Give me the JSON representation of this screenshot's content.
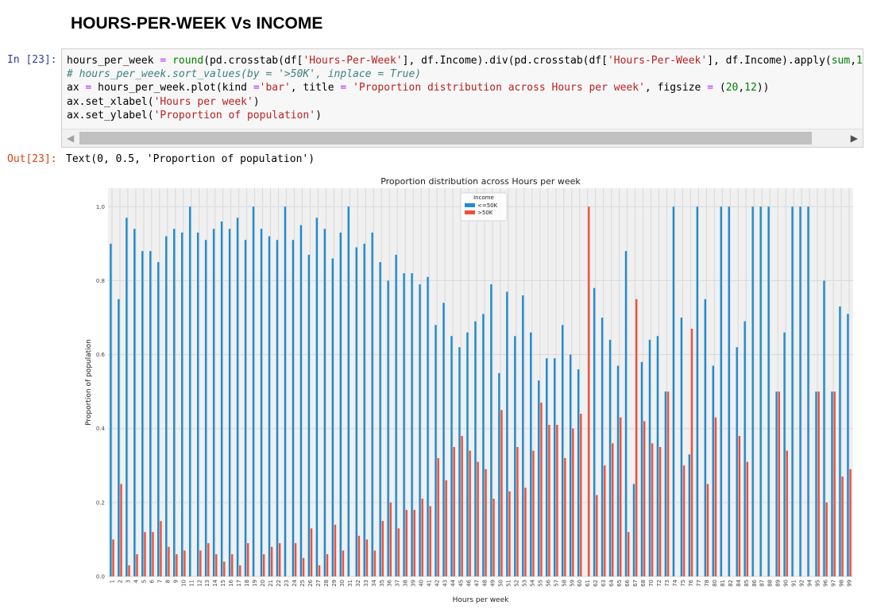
{
  "heading": "HOURS-PER-WEEK Vs INCOME",
  "cell_in": {
    "prompt": "In [23]:",
    "lines": [
      [
        {
          "t": "hours_per_week ",
          "c": ""
        },
        {
          "t": "=",
          "c": "op"
        },
        {
          "t": " ",
          "c": ""
        },
        {
          "t": "round",
          "c": "kw"
        },
        {
          "t": "(pd.crosstab(df[",
          "c": ""
        },
        {
          "t": "'Hours-Per-Week'",
          "c": "str"
        },
        {
          "t": "], df.Income).div(pd.crosstab(df[",
          "c": ""
        },
        {
          "t": "'Hours-Per-Week'",
          "c": "str"
        },
        {
          "t": "], df.Income).apply(",
          "c": ""
        },
        {
          "t": "sum",
          "c": "kw"
        },
        {
          "t": ",",
          "c": ""
        },
        {
          "t": "1",
          "c": "num"
        },
        {
          "t": "),",
          "c": ""
        }
      ],
      [
        {
          "t": "# hours_per_week.sort_values(by = '>50K', inplace = True)",
          "c": "cmt"
        }
      ],
      [
        {
          "t": "ax ",
          "c": ""
        },
        {
          "t": "=",
          "c": "op"
        },
        {
          "t": " hours_per_week.plot(kind ",
          "c": ""
        },
        {
          "t": "=",
          "c": "op"
        },
        {
          "t": "'bar'",
          "c": "str"
        },
        {
          "t": ", title ",
          "c": ""
        },
        {
          "t": "=",
          "c": "op"
        },
        {
          "t": " ",
          "c": ""
        },
        {
          "t": "'Proportion distribution across Hours per week'",
          "c": "str"
        },
        {
          "t": ", figsize ",
          "c": ""
        },
        {
          "t": "=",
          "c": "op"
        },
        {
          "t": " (",
          "c": ""
        },
        {
          "t": "20",
          "c": "num"
        },
        {
          "t": ",",
          "c": ""
        },
        {
          "t": "12",
          "c": "num"
        },
        {
          "t": "))",
          "c": ""
        }
      ],
      [
        {
          "t": "ax.set_xlabel(",
          "c": ""
        },
        {
          "t": "'Hours per week'",
          "c": "str"
        },
        {
          "t": ")",
          "c": ""
        }
      ],
      [
        {
          "t": "ax.set_ylabel(",
          "c": ""
        },
        {
          "t": "'Proportion of population'",
          "c": "str"
        },
        {
          "t": ")",
          "c": ""
        }
      ]
    ]
  },
  "cell_out": {
    "prompt": "Out[23]:",
    "text": "Text(0, 0.5, 'Proportion of population')"
  },
  "chart_data": {
    "type": "bar",
    "title": "Proportion distribution across Hours per week",
    "xlabel": "Hours per week",
    "ylabel": "Proportion of population",
    "ylim": [
      0,
      1.05
    ],
    "yticks": [
      "0.0",
      "0.2",
      "0.4",
      "0.6",
      "0.8",
      "1.0"
    ],
    "grid": true,
    "legend": {
      "title": "Income",
      "placement": "top-center"
    },
    "colors": {
      "<=50K": "#1f8ccf",
      ">50K": "#f0513a",
      "background": "#f0f0f0",
      "grid": "#d8d8d8"
    },
    "categories": [
      "1",
      "2",
      "3",
      "4",
      "5",
      "6",
      "7",
      "8",
      "9",
      "10",
      "11",
      "12",
      "13",
      "14",
      "15",
      "16",
      "17",
      "18",
      "19",
      "20",
      "21",
      "22",
      "23",
      "24",
      "25",
      "26",
      "27",
      "28",
      "29",
      "30",
      "31",
      "32",
      "33",
      "34",
      "35",
      "36",
      "37",
      "38",
      "39",
      "40",
      "41",
      "42",
      "43",
      "44",
      "45",
      "46",
      "47",
      "48",
      "49",
      "50",
      "51",
      "52",
      "53",
      "54",
      "55",
      "56",
      "57",
      "58",
      "59",
      "60",
      "61",
      "62",
      "63",
      "64",
      "65",
      "66",
      "67",
      "68",
      "70",
      "72",
      "73",
      "74",
      "75",
      "76",
      "77",
      "78",
      "80",
      "81",
      "82",
      "84",
      "85",
      "86",
      "87",
      "88",
      "89",
      "90",
      "91",
      "92",
      "94",
      "95",
      "96",
      "97",
      "98",
      "99"
    ],
    "series": [
      {
        "name": "<=50K",
        "values": [
          0.9,
          0.75,
          0.97,
          0.94,
          0.88,
          0.88,
          0.85,
          0.92,
          0.94,
          0.93,
          1.0,
          0.93,
          0.91,
          0.94,
          0.96,
          0.94,
          0.97,
          0.91,
          1.0,
          0.94,
          0.92,
          0.91,
          1.0,
          0.91,
          0.95,
          0.87,
          0.97,
          0.94,
          0.86,
          0.93,
          1.0,
          0.89,
          0.9,
          0.93,
          0.85,
          0.8,
          0.87,
          0.82,
          0.82,
          0.79,
          0.81,
          0.68,
          0.74,
          0.65,
          0.62,
          0.66,
          0.69,
          0.71,
          0.79,
          0.55,
          0.77,
          0.65,
          0.76,
          0.66,
          0.53,
          0.59,
          0.59,
          0.68,
          0.6,
          0.56,
          0.0,
          0.78,
          0.7,
          0.64,
          0.57,
          0.88,
          0.25,
          0.58,
          0.64,
          0.65,
          0.5,
          1.0,
          0.7,
          0.33,
          1.0,
          0.75,
          0.57,
          1.0,
          1.0,
          0.62,
          0.69,
          1.0,
          1.0,
          1.0,
          0.5,
          0.66,
          1.0,
          1.0,
          1.0,
          0.5,
          0.8,
          0.5,
          0.73,
          0.71
        ]
      },
      {
        "name": ">50K",
        "values": [
          0.1,
          0.25,
          0.03,
          0.06,
          0.12,
          0.12,
          0.15,
          0.08,
          0.06,
          0.07,
          0.0,
          0.07,
          0.09,
          0.06,
          0.04,
          0.06,
          0.03,
          0.09,
          0.0,
          0.06,
          0.08,
          0.09,
          0.0,
          0.09,
          0.05,
          0.13,
          0.03,
          0.06,
          0.14,
          0.07,
          0.0,
          0.11,
          0.1,
          0.07,
          0.15,
          0.2,
          0.13,
          0.18,
          0.18,
          0.21,
          0.19,
          0.32,
          0.26,
          0.35,
          0.38,
          0.34,
          0.31,
          0.29,
          0.21,
          0.45,
          0.23,
          0.35,
          0.24,
          0.34,
          0.47,
          0.41,
          0.41,
          0.32,
          0.4,
          0.44,
          1.0,
          0.22,
          0.3,
          0.36,
          0.43,
          0.12,
          0.75,
          0.42,
          0.36,
          0.35,
          0.5,
          0.0,
          0.3,
          0.67,
          0.0,
          0.25,
          0.43,
          0.0,
          0.0,
          0.38,
          0.31,
          0.0,
          0.0,
          0.0,
          0.5,
          0.34,
          0.0,
          0.0,
          0.0,
          0.5,
          0.2,
          0.5,
          0.27,
          0.29
        ]
      }
    ]
  }
}
